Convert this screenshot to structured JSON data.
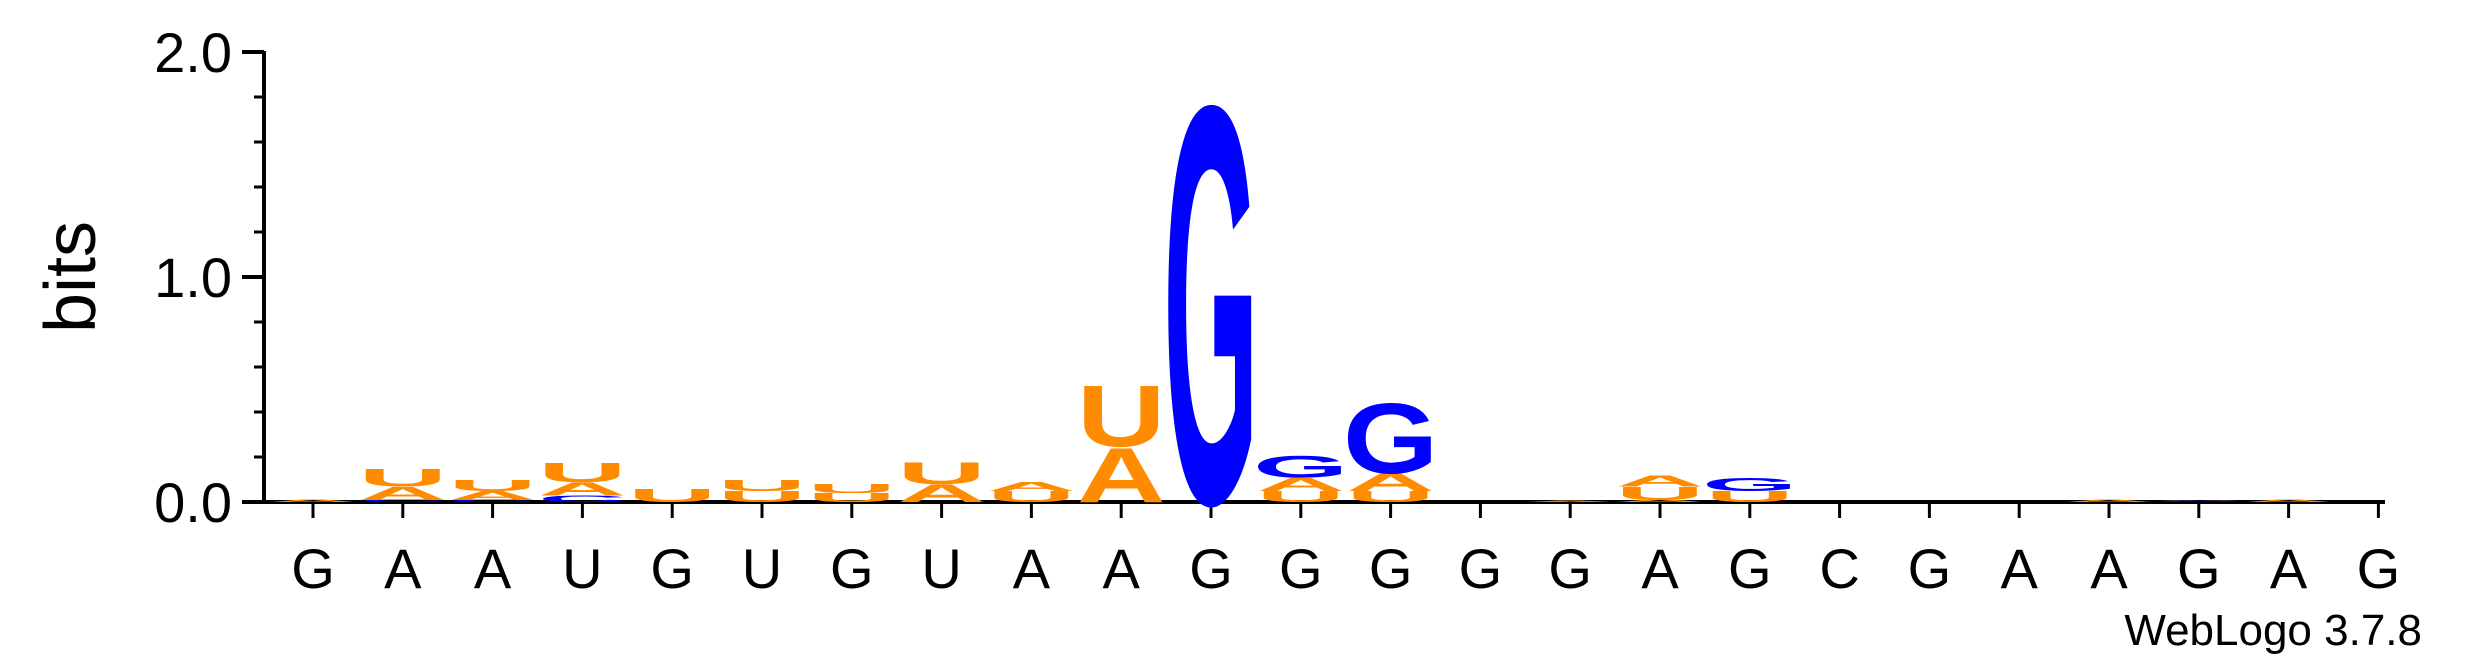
{
  "chart_data": {
    "type": "sequence-logo",
    "ylabel": "bits",
    "ylim": [
      0,
      2.0
    ],
    "yticks": [
      "0.0",
      "1.0",
      "2.0"
    ],
    "xticks": [
      "G",
      "A",
      "A",
      "U",
      "G",
      "U",
      "G",
      "U",
      "A",
      "A",
      "G",
      "G",
      "G",
      "G",
      "G",
      "A",
      "G",
      "C",
      "G",
      "A",
      "A",
      "G",
      "A",
      "G"
    ],
    "credit": "WebLogo 3.7.8",
    "colors": {
      "A": "#ff8c00",
      "U": "#ff8c00",
      "G": "#0000ff",
      "C": "#0000ff"
    },
    "stacks": [
      [
        [
          "A",
          0.012
        ]
      ],
      [
        [
          "C",
          0.01
        ],
        [
          "A",
          0.06
        ],
        [
          "U",
          0.08
        ]
      ],
      [
        [
          "C",
          0.01
        ],
        [
          "A",
          0.04
        ],
        [
          "U",
          0.05
        ]
      ],
      [
        [
          "C",
          0.03
        ],
        [
          "A",
          0.06
        ],
        [
          "U",
          0.09
        ]
      ],
      [
        [
          "U",
          0.06
        ]
      ],
      [
        [
          "U",
          0.05
        ],
        [
          "U",
          0.05
        ]
      ],
      [
        [
          "U",
          0.04
        ],
        [
          "U",
          0.04
        ]
      ],
      [
        [
          "A",
          0.08
        ],
        [
          "U",
          0.1
        ]
      ],
      [
        [
          "U",
          0.05
        ],
        [
          "A",
          0.04
        ]
      ],
      [
        [
          "A",
          0.25
        ],
        [
          "U",
          0.28
        ]
      ],
      [
        [
          "G",
          1.82
        ]
      ],
      [
        [
          "U",
          0.05
        ],
        [
          "A",
          0.06
        ],
        [
          "G",
          0.1
        ]
      ],
      [
        [
          "U",
          0.05
        ],
        [
          "A",
          0.08
        ],
        [
          "G",
          0.32
        ]
      ],
      [],
      [
        [
          "A",
          0.005
        ]
      ],
      [
        [
          "A",
          0.01
        ],
        [
          "U",
          0.06
        ],
        [
          "A",
          0.05
        ]
      ],
      [
        [
          "U",
          0.05
        ],
        [
          "G",
          0.06
        ]
      ],
      [],
      [],
      [],
      [
        [
          "A",
          0.01
        ]
      ],
      [
        [
          "C",
          0.006
        ],
        [
          "A",
          0.004
        ]
      ],
      [
        [
          "A",
          0.01
        ]
      ],
      []
    ]
  }
}
